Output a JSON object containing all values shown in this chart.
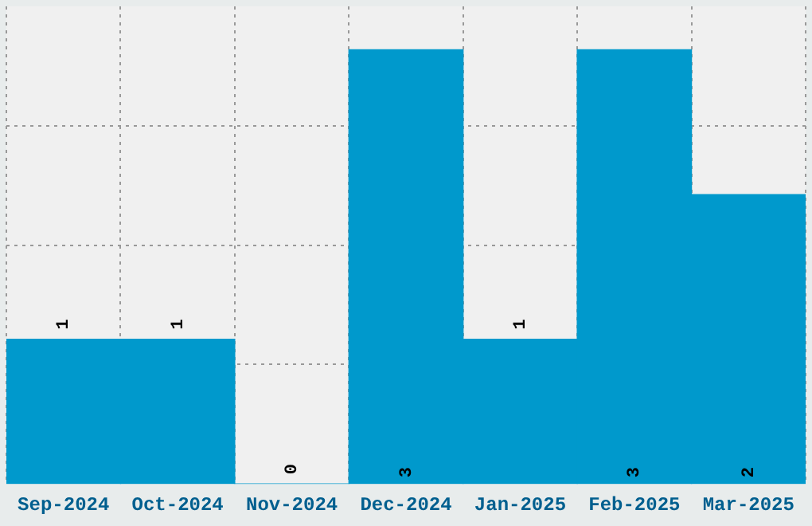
{
  "chart_data": {
    "type": "bar",
    "categories": [
      "Sep-2024",
      "Oct-2024",
      "Nov-2024",
      "Dec-2024",
      "Jan-2025",
      "Feb-2025",
      "Mar-2025"
    ],
    "values": [
      1,
      1,
      0,
      3,
      1,
      3,
      2
    ],
    "color": "#0099cc",
    "data_labels": true,
    "grid": true,
    "legend": false,
    "tick_labels": "x",
    "ylim": [
      0,
      3.3
    ],
    "yticks": [
      {
        "value": 0.825,
        "label": null
      },
      {
        "value": 1.65,
        "label": null
      },
      {
        "value": 2.475,
        "label": null
      }
    ]
  }
}
